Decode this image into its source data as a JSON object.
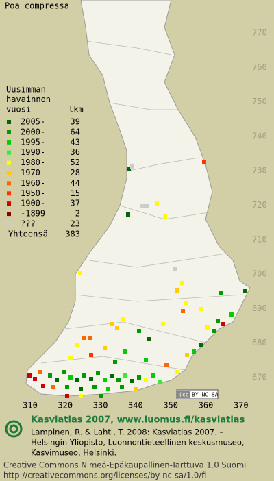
{
  "title": "Poa compressa",
  "grid": {
    "northing": [
      770,
      760,
      750,
      740,
      730,
      720,
      710,
      700,
      690,
      680,
      670
    ],
    "easting": [
      310,
      320,
      330,
      340,
      350,
      360,
      370
    ]
  },
  "legend": {
    "heading": [
      "Uusimman",
      "havainnon",
      "vuosi"
    ],
    "count_heading": "lkm",
    "rows": [
      {
        "label": "2005-",
        "count": 39,
        "color": "#006600"
      },
      {
        "label": "2000-",
        "count": 64,
        "color": "#009900"
      },
      {
        "label": "1995-",
        "count": 43,
        "color": "#00cc00"
      },
      {
        "label": "1990-",
        "count": 36,
        "color": "#33ee33"
      },
      {
        "label": "1980-",
        "count": 52,
        "color": "#ffff00"
      },
      {
        "label": "1970-",
        "count": 28,
        "color": "#ffcc00"
      },
      {
        "label": "1960-",
        "count": 44,
        "color": "#ff6600"
      },
      {
        "label": "1950-",
        "count": 15,
        "color": "#ff3300"
      },
      {
        "label": "1900-",
        "count": 37,
        "color": "#cc0000"
      },
      {
        "label": "-1899",
        "count": 2,
        "color": "#880000"
      },
      {
        "label": "???",
        "count": 23,
        "color": "#cccccc"
      }
    ],
    "total": {
      "label": "Yhteensä",
      "count": 383
    }
  },
  "badge": "BY-NC-SA",
  "footer": {
    "heading": "Kasviatlas 2007, www.luomus.fi/kasviatlas",
    "citation": [
      "Lampinen, R. & Lahti, T. 2008: Kasviatlas 2007. –",
      "Helsingin Yliopisto, Luonnontieteellinen keskusmuseo,",
      "Kasvimuseo, Helsinki."
    ],
    "license": [
      "Creative Commons Nimeä-Epäkaupallinen-Tarttuva 1.0 Suomi",
      "http://creativecommons.org/licenses/by-nc-sa/1.0/fi"
    ]
  }
}
